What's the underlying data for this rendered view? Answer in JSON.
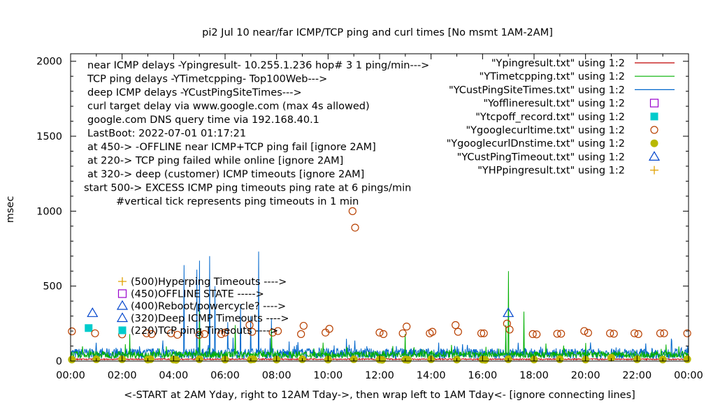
{
  "chart_data": {
    "type": "line",
    "title": "pi2 Jul 10  near/far ICMP/TCP ping and curl times [No msmt 1AM-2AM]",
    "ylabel": "msec",
    "xlabel": "<-START at 2AM Yday, right to 12AM Tday->, then wrap left to 1AM Tday<- [ignore connecting lines]",
    "xlim": [
      0,
      24
    ],
    "ylim": [
      0,
      2050
    ],
    "y_ticks": [
      0,
      500,
      1000,
      1500,
      2000
    ],
    "x_tick_labels": [
      "00:00",
      "02:00",
      "04:00",
      "06:00",
      "08:00",
      "10:00",
      "12:00",
      "14:00",
      "16:00",
      "18:00",
      "20:00",
      "22:00",
      "00:00"
    ],
    "grid": false,
    "legend_position": "top-right",
    "notes": [
      "near ICMP delays -Ypingresult- 10.255.1.236 hop# 3 1 ping/min--->",
      "TCP ping delays -YTimetcpping- Top100Web--->",
      "deep ICMP delays -YCustPingSiteTimes--->",
      "curl target delay via www.google.com (max 4s allowed)",
      "google.com DNS query time via 192.168.40.1",
      "LastBoot: 2022-07-01 01:17:21",
      "at 450-> -OFFLINE near ICMP+TCP ping fail [ignore 2AM]",
      "at 220-> TCP ping failed while online [ignore 2AM]",
      "at 320-> deep (customer) ICMP timeouts [ignore 2AM]",
      "start 500-> EXCESS ICMP ping timeouts ping rate at 6 pings/min",
      "#vertical tick represents ping timeouts in 1 min"
    ],
    "key_labels": [
      "(500)Hyperping Timeouts ---->",
      "(450)OFFLINE STATE ----->",
      "(400)Reboot/powercycle? ---->",
      "(320)Deep ICMP Timeouts ---->",
      "(220)TCP ping  Timeouts ---->"
    ],
    "series": [
      {
        "name": "\"Ypingresult.txt\" using 1:2",
        "style": "line",
        "color": "#c00000",
        "approx_level": 8
      },
      {
        "name": "\"YTimetcpping.txt\" using 1:2",
        "style": "line",
        "color": "#00b000",
        "approx_level": 45,
        "spikes": [
          [
            2.3,
            180
          ],
          [
            5.0,
            330
          ],
          [
            6.4,
            240
          ],
          [
            7.8,
            210
          ],
          [
            13.0,
            180
          ],
          [
            16.9,
            240
          ],
          [
            17.0,
            600
          ],
          [
            17.6,
            330
          ],
          [
            20.0,
            120
          ]
        ]
      },
      {
        "name": "\"YCustPingSiteTimes.txt\" using 1:2",
        "style": "line",
        "color": "#0066cc",
        "approx_level": 60,
        "spikes": [
          [
            4.4,
            640
          ],
          [
            4.9,
            610
          ],
          [
            5.0,
            670
          ],
          [
            5.4,
            700
          ],
          [
            5.6,
            500
          ],
          [
            6.1,
            260
          ],
          [
            6.6,
            380
          ],
          [
            7.0,
            300
          ],
          [
            7.3,
            730
          ],
          [
            7.8,
            280
          ]
        ]
      },
      {
        "name": "\"Yofflineresult.txt\" using 1:2",
        "style": "points",
        "marker": "open-square",
        "color": "#9900cc",
        "points": []
      },
      {
        "name": "\"Ytcpoff_record.txt\" using 1:2",
        "style": "points",
        "marker": "filled-square",
        "color": "#00cccc",
        "points": [
          [
            0.7,
            220
          ]
        ]
      },
      {
        "name": "\"Ygooglecurltime.txt\" using 1:2",
        "style": "points",
        "marker": "open-circle",
        "color": "#b84000",
        "points": [
          [
            0.05,
            198
          ],
          [
            0.95,
            185
          ],
          [
            2.0,
            178
          ],
          [
            2.95,
            185
          ],
          [
            3.15,
            180
          ],
          [
            3.9,
            185
          ],
          [
            4.15,
            175
          ],
          [
            5.0,
            175
          ],
          [
            5.2,
            180
          ],
          [
            5.85,
            180
          ],
          [
            6.0,
            190
          ],
          [
            6.95,
            240
          ],
          [
            7.05,
            195
          ],
          [
            7.85,
            190
          ],
          [
            8.05,
            200
          ],
          [
            8.95,
            180
          ],
          [
            9.05,
            235
          ],
          [
            9.9,
            190
          ],
          [
            10.05,
            215
          ],
          [
            10.95,
            1000
          ],
          [
            11.05,
            890
          ],
          [
            12.0,
            190
          ],
          [
            12.15,
            180
          ],
          [
            12.9,
            185
          ],
          [
            13.05,
            230
          ],
          [
            13.95,
            185
          ],
          [
            14.05,
            195
          ],
          [
            14.95,
            240
          ],
          [
            15.05,
            195
          ],
          [
            15.95,
            185
          ],
          [
            16.05,
            185
          ],
          [
            16.95,
            250
          ],
          [
            17.05,
            210
          ],
          [
            17.95,
            180
          ],
          [
            18.1,
            178
          ],
          [
            18.9,
            182
          ],
          [
            19.05,
            182
          ],
          [
            19.95,
            200
          ],
          [
            20.1,
            188
          ],
          [
            20.95,
            185
          ],
          [
            21.1,
            182
          ],
          [
            21.9,
            185
          ],
          [
            22.05,
            180
          ],
          [
            22.9,
            185
          ],
          [
            23.05,
            185
          ],
          [
            23.95,
            185
          ]
        ]
      },
      {
        "name": "\"YgooglecurlDnstime.txt\" using 1:2",
        "style": "points",
        "marker": "filled-circle",
        "color": "#b8b800",
        "points": [
          [
            0.05,
            10
          ],
          [
            1.0,
            12
          ],
          [
            2.0,
            12
          ],
          [
            3.0,
            10
          ],
          [
            3.1,
            12
          ],
          [
            4.0,
            10
          ],
          [
            4.1,
            8
          ],
          [
            5.0,
            12
          ],
          [
            6.0,
            10
          ],
          [
            7.0,
            10
          ],
          [
            7.1,
            12
          ],
          [
            8.0,
            10
          ],
          [
            9.0,
            12
          ],
          [
            10.0,
            10
          ],
          [
            11.0,
            12
          ],
          [
            12.0,
            10
          ],
          [
            12.1,
            8
          ],
          [
            13.0,
            10
          ],
          [
            13.1,
            8
          ],
          [
            14.0,
            12
          ],
          [
            15.0,
            10
          ],
          [
            16.0,
            10
          ],
          [
            16.1,
            8
          ],
          [
            17.0,
            12
          ],
          [
            18.0,
            10
          ],
          [
            19.0,
            12
          ],
          [
            20.0,
            10
          ],
          [
            21.0,
            22
          ],
          [
            22.0,
            12
          ],
          [
            23.0,
            10
          ],
          [
            23.95,
            12
          ]
        ]
      },
      {
        "name": "\"YCustPingTimeout.txt\" using 1:2",
        "style": "points",
        "marker": "open-triangle",
        "color": "#0044cc",
        "points": [
          [
            0.85,
            320
          ],
          [
            17.0,
            320
          ]
        ]
      },
      {
        "name": "\"YHPpingresult.txt\" using 1:2",
        "style": "points",
        "marker": "plus",
        "color": "#e0a000",
        "points": []
      }
    ]
  }
}
